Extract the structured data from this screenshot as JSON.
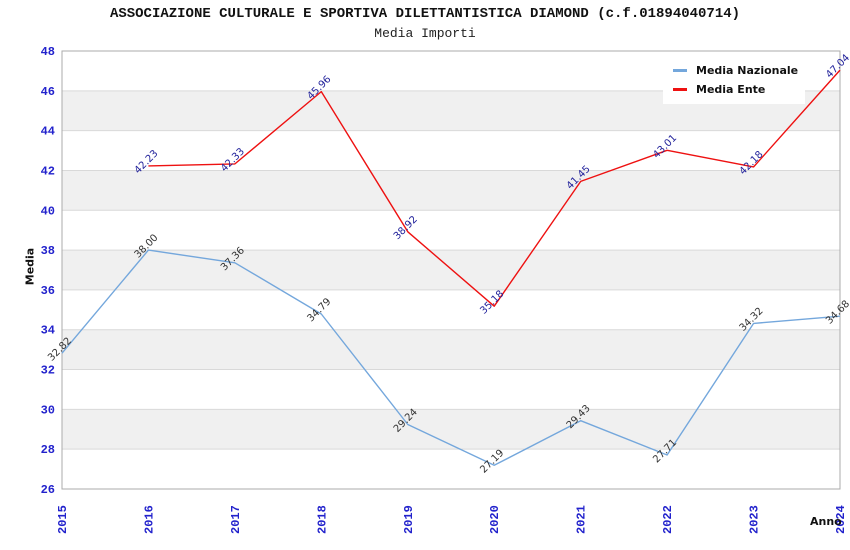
{
  "title": "ASSOCIAZIONE CULTURALE E SPORTIVA DILETTANTISTICA DIAMOND (c.f.01894040714)",
  "subtitle": "Media Importi",
  "axes": {
    "y_label": "Media",
    "x_label": "Anno",
    "y_ticks": [
      26,
      28,
      30,
      32,
      34,
      36,
      38,
      40,
      42,
      44,
      46,
      48
    ],
    "x_ticks": [
      "2015",
      "2016",
      "2017",
      "2018",
      "2019",
      "2020",
      "2021",
      "2022",
      "2023",
      "2024"
    ],
    "tick_color": "#2222cc"
  },
  "legend": {
    "items": [
      {
        "label": "Media Nazionale",
        "color": "#74a7dc"
      },
      {
        "label": "Media Ente",
        "color": "#ee1111"
      }
    ]
  },
  "chart_data": {
    "type": "line",
    "title": "Media Importi",
    "xlabel": "Anno",
    "ylabel": "Media",
    "x": [
      2015,
      2016,
      2017,
      2018,
      2019,
      2020,
      2021,
      2022,
      2023,
      2024
    ],
    "ylim": [
      26,
      48
    ],
    "ytick_step": 2,
    "grid": true,
    "legend_position": "top-right",
    "band_fill": "#f0f0f0",
    "grid_color": "#d9d9d9",
    "border_color": "#ababab",
    "series": [
      {
        "name": "Media Nazionale",
        "color": "#74a7dc",
        "label_color": "#333333",
        "values": [
          32.82,
          38.0,
          37.36,
          34.79,
          29.24,
          27.19,
          29.43,
          27.71,
          34.32,
          34.68
        ]
      },
      {
        "name": "Media Ente",
        "color": "#ee1111",
        "label_color": "#22229b",
        "values": [
          null,
          42.23,
          42.33,
          45.96,
          38.92,
          35.18,
          41.45,
          43.01,
          42.18,
          47.04
        ]
      }
    ]
  }
}
